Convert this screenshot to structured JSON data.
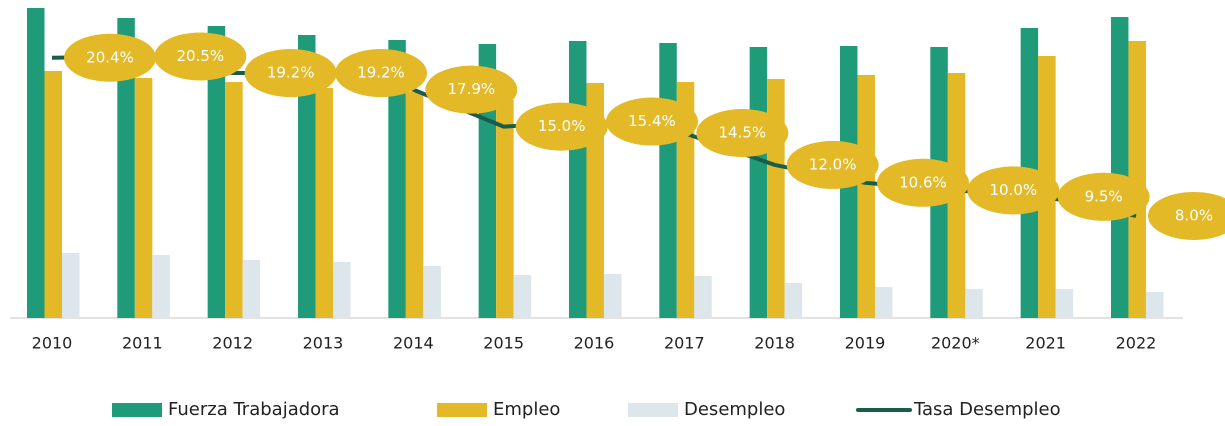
{
  "chart_data": {
    "type": "bar",
    "categories": [
      "2010",
      "2011",
      "2012",
      "2013",
      "2014",
      "2015",
      "2016",
      "2017",
      "2018",
      "2019",
      "2020*",
      "2021",
      "2022"
    ],
    "ylim": [
      0,
      310
    ],
    "y2lim": [
      0,
      24.3
    ],
    "series": [
      {
        "name": "Fuerza Trabajadora",
        "color": "#1f9b7a",
        "values": [
          310,
          300,
          292,
          283,
          278,
          274,
          277,
          275,
          271,
          272,
          271,
          290,
          301
        ]
      },
      {
        "name": "Empleo",
        "color": "#e3b928",
        "values": [
          247,
          240,
          236,
          230,
          226,
          218,
          235,
          236,
          239,
          243,
          245,
          262,
          277
        ]
      },
      {
        "name": "Desempleo",
        "color": "#dde6ea",
        "values": [
          65,
          63,
          58,
          56,
          52,
          43,
          44,
          42,
          35,
          31,
          29,
          29,
          26
        ]
      },
      {
        "name": "Tasa Desempleo",
        "color": "#1a5c4a",
        "type": "line",
        "axis": "y2",
        "values": [
          20.4,
          20.5,
          19.2,
          19.2,
          17.9,
          15.0,
          15.4,
          14.5,
          12.0,
          10.6,
          10.0,
          9.5,
          8.0
        ],
        "value_labels": [
          "20.4%",
          "20.5%",
          "19.2%",
          "19.2%",
          "17.9%",
          "15.0%",
          "15.4%",
          "14.5%",
          "12.0%",
          "10.6%",
          "10.0%",
          "9.5%",
          "8.0%"
        ],
        "label_color": "#e3b928"
      }
    ]
  }
}
